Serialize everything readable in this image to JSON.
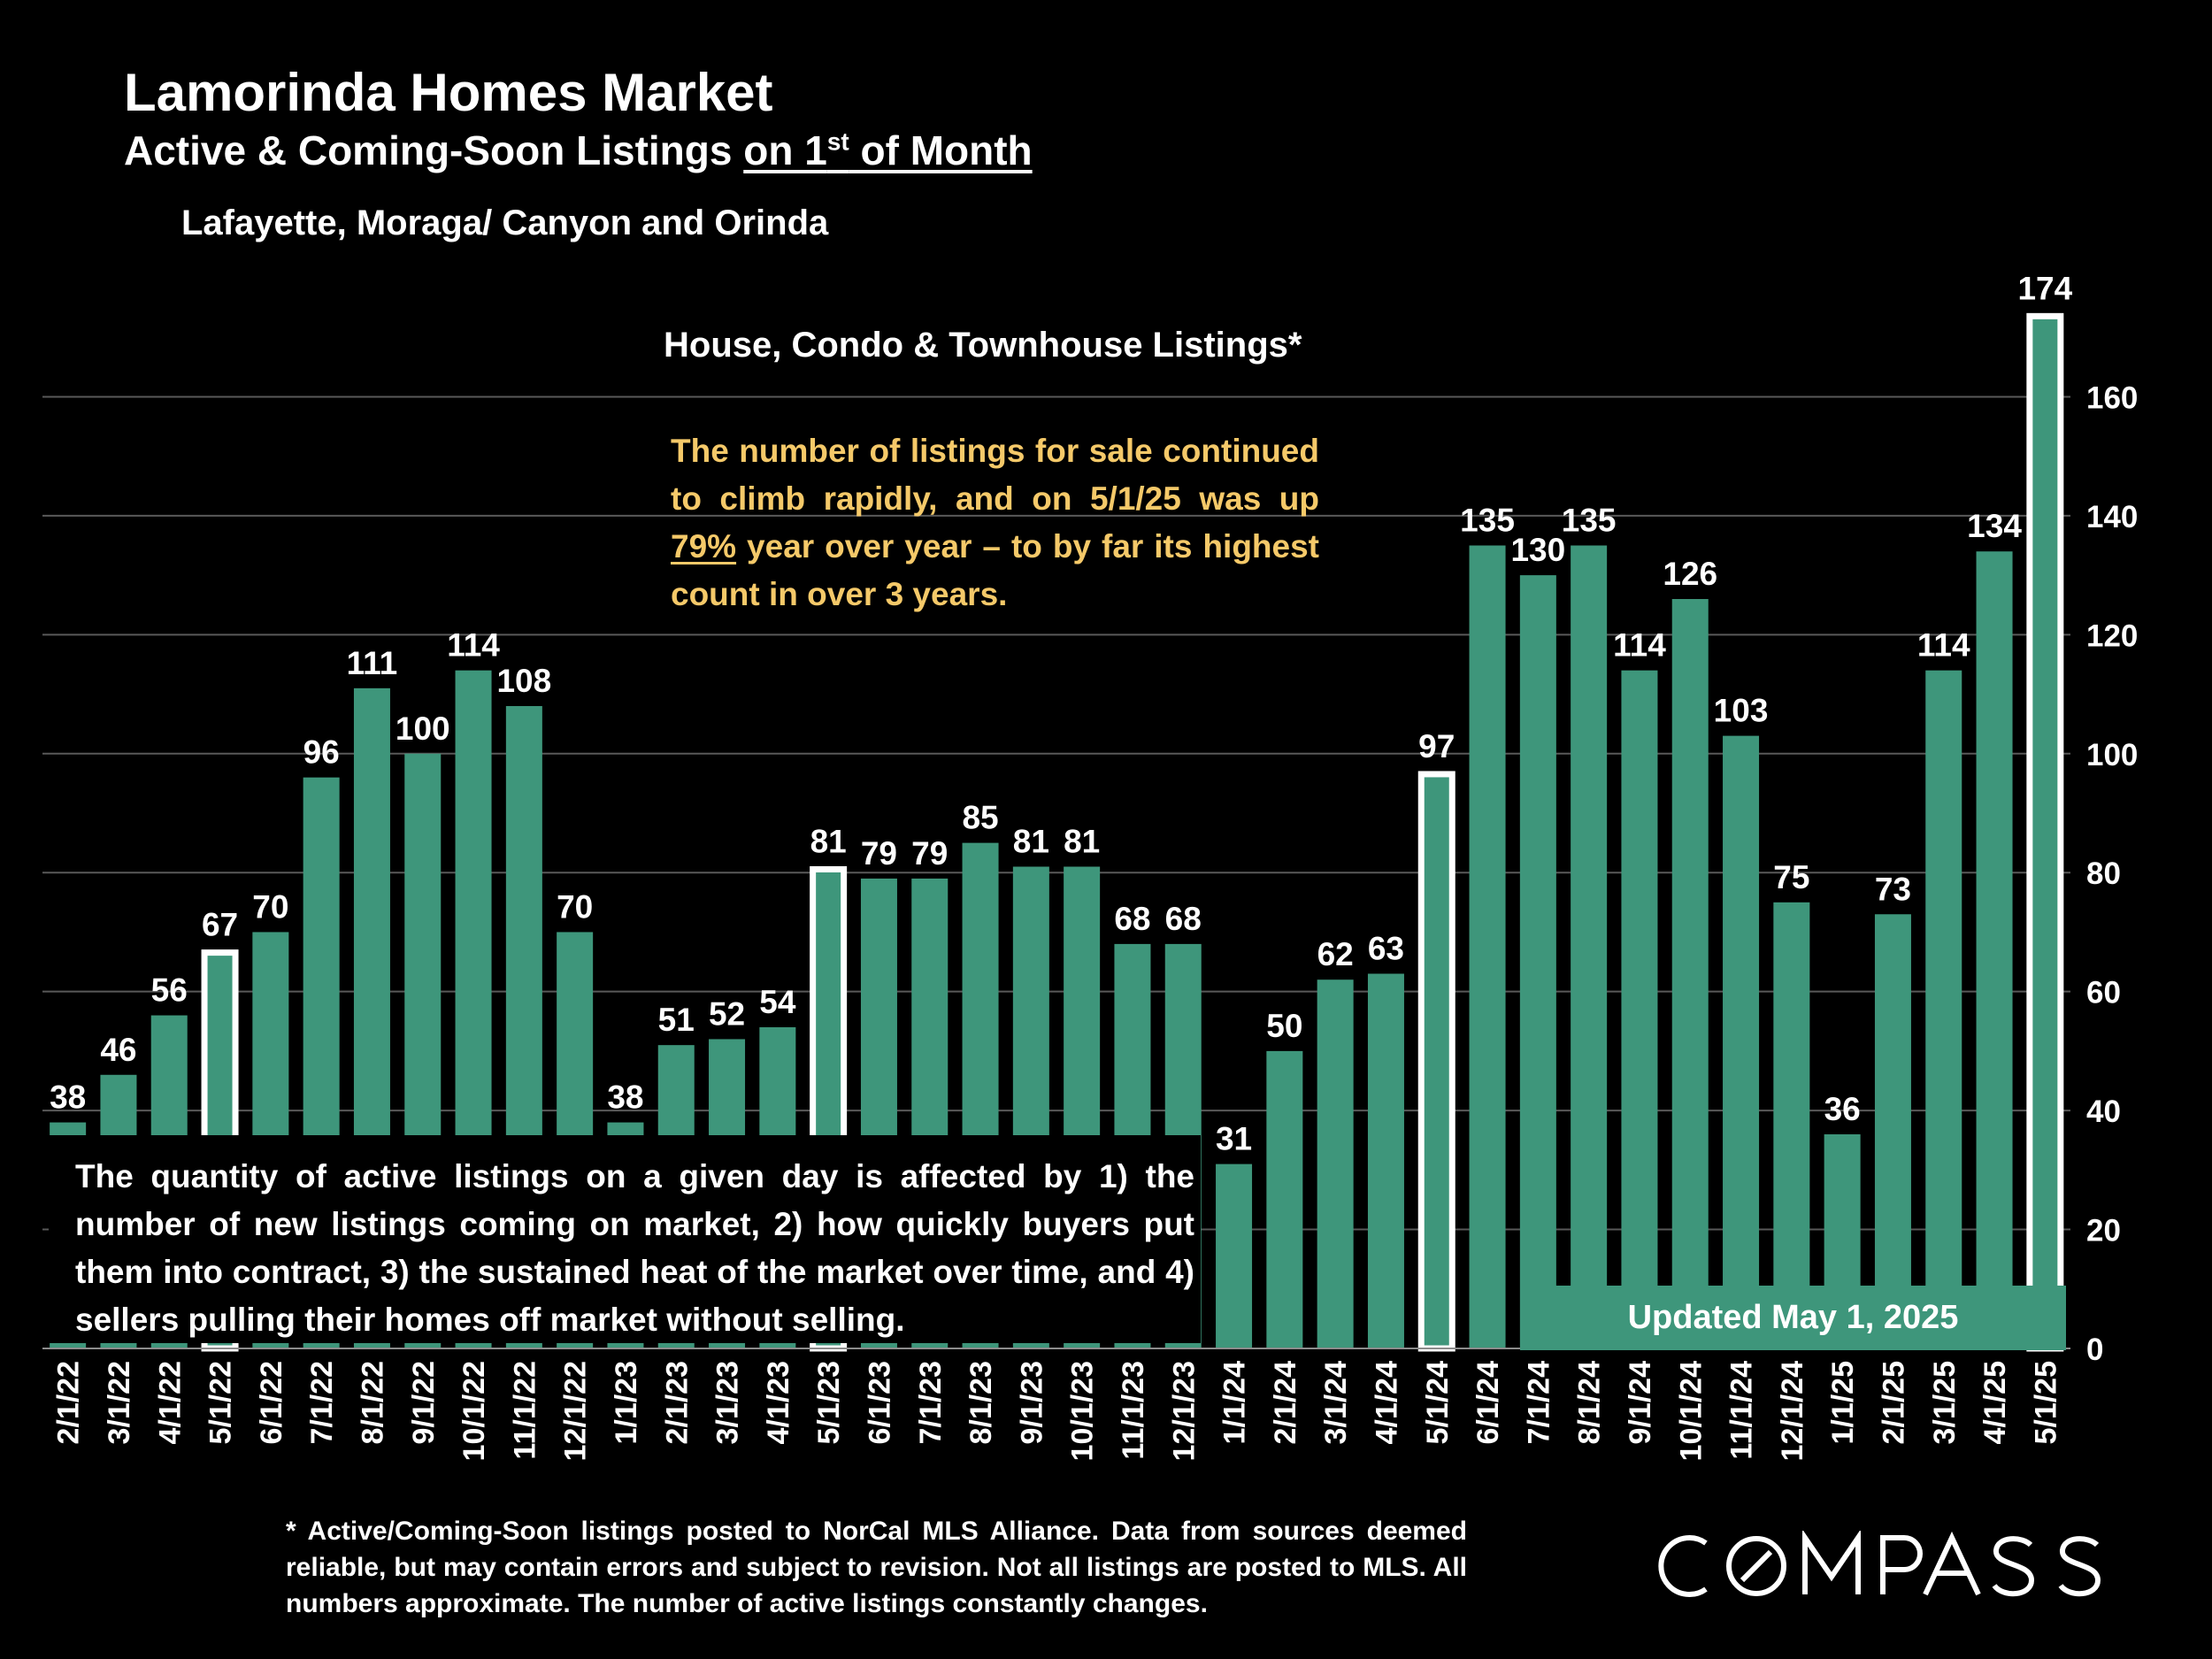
{
  "title": "Lamorinda Homes Market",
  "subtitle": {
    "prefix": "Active & Coming-Soon Listings ",
    "underlined_lead": "on 1",
    "superscript": "st",
    "underlined_tail": " of Month"
  },
  "region": "Lafayette, Moraga/ Canyon and Orinda",
  "chart_heading": "House, Condo & Townhouse Listings*",
  "annotation": {
    "before": "The number of listings for sale continued to climb rapidly, and on 5/1/25 was up ",
    "highlight": "79%",
    "after": " year over year – to by far its highest count in over 3 years."
  },
  "note": "The quantity of active listings on a given day is affected by 1) the number of new listings coming on market, 2) how quickly buyers put them into contract, 3) the sustained heat of the market over time, and 4) sellers pulling their homes off market without selling.",
  "updated": "Updated May 1, 2025",
  "footnote": "* Active/Coming-Soon listings posted to NorCal MLS Alliance.  Data from sources deemed reliable, but may contain errors and subject to revision.  Not all listings are posted to MLS. All numbers approximate. The number of active listings constantly changes.",
  "logo_text": "COMPASS",
  "colors": {
    "background": "#000000",
    "bar": "#3e967b",
    "highlight_outline": "#ffffff",
    "annotation": "#f5c969",
    "text": "#ffffff",
    "gridline": "#595959"
  },
  "chart_data": {
    "type": "bar",
    "title": "House, Condo & Townhouse Listings*",
    "categories": [
      "2/1/22",
      "3/1/22",
      "4/1/22",
      "5/1/22",
      "6/1/22",
      "7/1/22",
      "8/1/22",
      "9/1/22",
      "10/1/22",
      "11/1/22",
      "12/1/22",
      "1/1/23",
      "2/1/23",
      "3/1/23",
      "4/1/23",
      "5/1/23",
      "6/1/23",
      "7/1/23",
      "8/1/23",
      "9/1/23",
      "10/1/23",
      "11/1/23",
      "12/1/23",
      "1/1/24",
      "2/1/24",
      "3/1/24",
      "4/1/24",
      "5/1/24",
      "6/1/24",
      "7/1/24",
      "8/1/24",
      "9/1/24",
      "10/1/24",
      "11/1/24",
      "12/1/24",
      "1/1/25",
      "2/1/25",
      "3/1/25",
      "4/1/25",
      "5/1/25"
    ],
    "values": [
      38,
      46,
      56,
      67,
      70,
      96,
      111,
      100,
      114,
      108,
      70,
      38,
      51,
      52,
      54,
      81,
      79,
      79,
      85,
      81,
      81,
      68,
      68,
      31,
      50,
      62,
      63,
      97,
      135,
      130,
      135,
      114,
      126,
      103,
      75,
      36,
      73,
      114,
      134,
      174
    ],
    "highlighted": [
      "5/1/22",
      "5/1/23",
      "5/1/24",
      "5/1/25"
    ],
    "y_axis": {
      "position": "right",
      "ylim": [
        0,
        180
      ],
      "ticks": [
        0,
        20,
        40,
        60,
        80,
        100,
        120,
        140,
        160
      ]
    },
    "grid": true,
    "data_labels": true
  }
}
